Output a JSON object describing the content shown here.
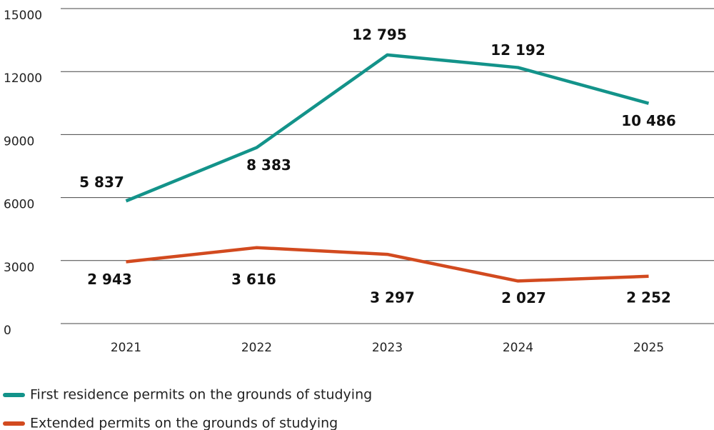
{
  "chart_data": {
    "type": "line",
    "categories": [
      "2021",
      "2022",
      "2023",
      "2024",
      "2025"
    ],
    "series": [
      {
        "name": "First residence permits on the grounds of studying",
        "color": "#13938a",
        "values": [
          5837,
          8383,
          12795,
          12192,
          10486
        ],
        "value_labels": [
          "5 837",
          "8 383",
          "12 795",
          "12 192",
          "10 486"
        ]
      },
      {
        "name": "Extended permits on the grounds of studying",
        "color": "#d24a1f",
        "values": [
          2943,
          3616,
          3297,
          2027,
          2252
        ],
        "value_labels": [
          "2 943",
          "3 616",
          "3 297",
          "2 027",
          "2 252"
        ]
      }
    ],
    "ylim": [
      0,
      15000
    ],
    "yticks": [
      0,
      3000,
      6000,
      9000,
      12000,
      15000
    ],
    "grid": true
  }
}
